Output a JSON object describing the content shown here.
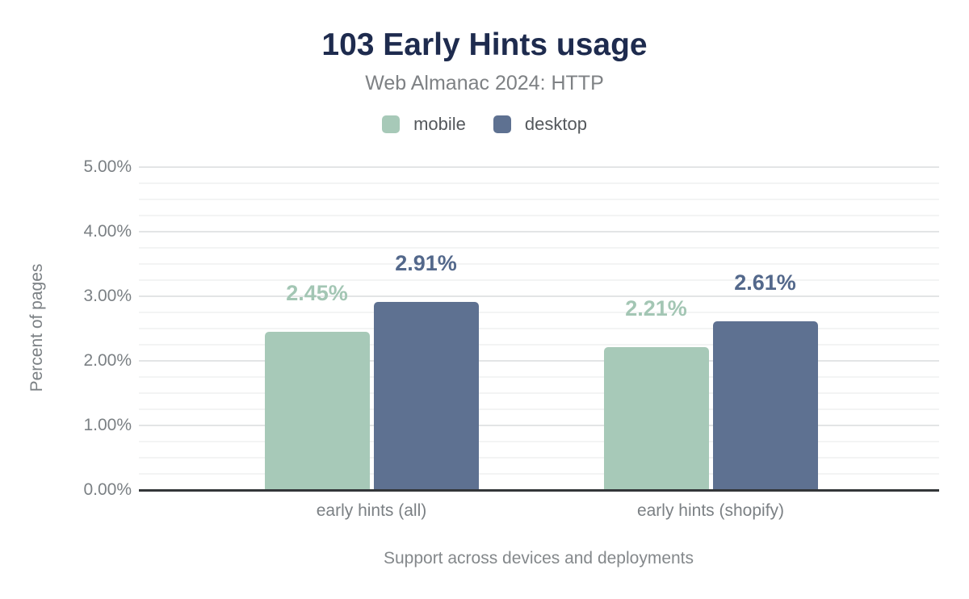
{
  "title": "103 Early Hints usage",
  "subtitle": "Web Almanac 2024: HTTP",
  "chart_data": {
    "type": "bar",
    "title": "103 Early Hints usage",
    "subtitle": "Web Almanac 2024: HTTP",
    "categories": [
      "early hints (all)",
      "early hints (shopify)"
    ],
    "series": [
      {
        "name": "mobile",
        "color": "#a7c9b8",
        "label_color": "#a3c6b4",
        "values": [
          2.45,
          2.21
        ],
        "labels": [
          "2.45%",
          "2.21%"
        ]
      },
      {
        "name": "desktop",
        "color": "#5e7191",
        "label_color": "#53688b",
        "values": [
          2.91,
          2.61
        ],
        "labels": [
          "2.91%",
          "2.61%"
        ]
      }
    ],
    "xlabel": "Support across devices and deployments",
    "ylabel": "Percent of pages",
    "ylim": [
      0,
      5
    ],
    "yticks": [
      "0.00%",
      "1.00%",
      "2.00%",
      "3.00%",
      "4.00%",
      "5.00%"
    ],
    "grid": {
      "major_step": 1,
      "minor_step": 0.25,
      "on": true
    },
    "legend_position": "top",
    "colors": {
      "title": "#1e2b4e",
      "axis_line": "#333639",
      "major_grid": "#e3e5e6",
      "minor_grid": "#f3f4f4",
      "tick_text": "#7b8084"
    }
  }
}
